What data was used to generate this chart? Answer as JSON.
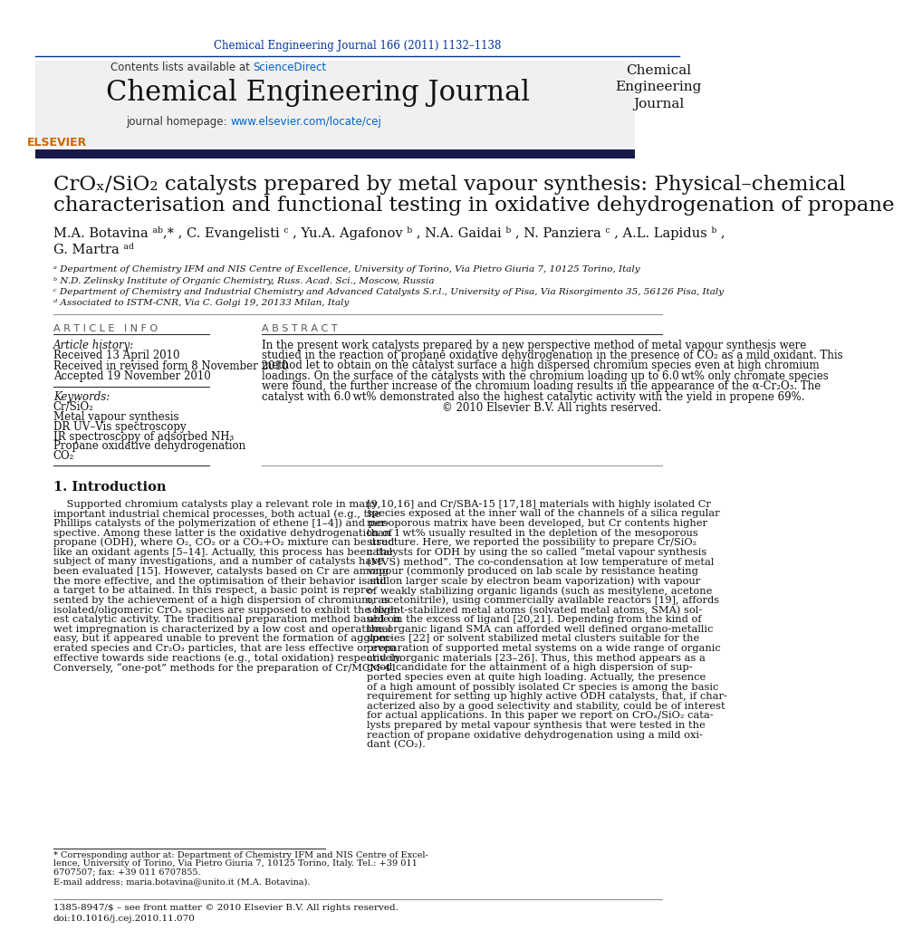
{
  "page_color": "#ffffff",
  "top_journal_ref": "Chemical Engineering Journal 166 (2011) 1132–1138",
  "journal_name": "Chemical Engineering Journal",
  "journal_name_right": "Chemical\nEngineering\nJournal",
  "contents_text": "Contents lists available at ",
  "sciencedirect_text": "ScienceDirect",
  "homepage_text": "journal homepage: ",
  "homepage_url": "www.elsevier.com/locate/cej",
  "title_line1": "CrOₓ/SiO₂ catalysts prepared by metal vapour synthesis: Physical–chemical",
  "title_line2": "characterisation and functional testing in oxidative dehydrogenation of propane",
  "authors": "M.A. Botavina ᵃᵇ,* , C. Evangelisti ᶜ , Yu.A. Agafonov ᵇ , N.A. Gaidai ᵇ , N. Panziera ᶜ , A.L. Lapidus ᵇ ,",
  "authors2": "G. Martra ᵃᵈ",
  "affil_a": "ᵃ Department of Chemistry IFM and NIS Centre of Excellence, University of Torino, Via Pietro Giuria 7, 10125 Torino, Italy",
  "affil_b": "ᵇ N.D. Zelinsky Institute of Organic Chemistry, Russ. Acad. Sci., Moscow, Russia",
  "affil_c": "ᶜ Department of Chemistry and Industrial Chemistry and Advanced Catalysts S.r.l., University of Pisa, Via Risorgimento 35, 56126 Pisa, Italy",
  "affil_d": "ᵈ Associated to ISTM-CNR, Via C. Golgi 19, 20133 Milan, Italy",
  "article_info_header": "A R T I C L E   I N F O",
  "abstract_header": "A B S T R A C T",
  "article_history_header": "Article history:",
  "received1": "Received 13 April 2010",
  "received2": "Received in revised form 8 November 2010",
  "accepted": "Accepted 19 November 2010",
  "keywords_header": "Keywords:",
  "kw1": "Cr/SiO₂",
  "kw2": "Metal vapour synthesis",
  "kw3": "DR UV–Vis spectroscopy",
  "kw4": "IR spectroscopy of adsorbed NH₃",
  "kw5": "Propane oxidative dehydrogenation",
  "kw6": "CO₂",
  "abstract_text": "In the present work catalysts prepared by a new perspective method of metal vapour synthesis were\nstudied in the reaction of propane oxidative dehydrogenation in the presence of CO₂ as a mild oxidant. This\nmethod let to obtain on the catalyst surface a high dispersed chromium species even at high chromium\nloadings. On the surface of the catalysts with the chromium loading up to 6.0 wt% only chromate species\nwere found, the further increase of the chromium loading results in the appearance of the α-Cr₂O₃. The\ncatalyst with 6.0 wt% demonstrated also the highest catalytic activity with the yield in propene 69%.",
  "copyright": "© 2010 Elsevier B.V. All rights reserved.",
  "intro_header": "1. Introduction",
  "intro_col1_lines": [
    "    Supported chromium catalysts play a relevant role in many",
    "important industrial chemical processes, both actual (e.g., the",
    "Phillips catalysts of the polymerization of ethene [1–4]) and per-",
    "spective. Among these latter is the oxidative dehydrogenation of",
    "propane (ODH), where O₂, CO₂ or a CO₂+O₂ mixture can be used",
    "like an oxidant agents [5–14]. Actually, this process has been the",
    "subject of many investigations, and a number of catalysts have",
    "been evaluated [15]. However, catalysts based on Cr are among",
    "the more effective, and the optimisation of their behavior is still",
    "a target to be attained. In this respect, a basic point is repre-",
    "sented by the achievement of a high dispersion of chromium, as",
    "isolated/oligomeric CrOₓ species are supposed to exhibit the high-",
    "est catalytic activity. The traditional preparation method based on",
    "wet impregnation is characterized by a low cost and operational",
    "easy, but it appeared unable to prevent the formation of agglom-",
    "erated species and Cr₂O₃ particles, that are less effective or even",
    "effective towards side reactions (e.g., total oxidation) respectively.",
    "Conversely, “one-pot” methods for the preparation of Cr/MCM-41"
  ],
  "intro_col2_lines": [
    "[9,10,16] and Cr/SBA-15 [17,18] materials with highly isolated Cr",
    "species exposed at the inner wall of the channels of a silica regular",
    "mesoporous matrix have been developed, but Cr contents higher",
    "than 1 wt% usually resulted in the depletion of the mesoporous",
    "structure. Here, we reported the possibility to prepare Cr/SiO₂",
    "catalysts for ODH by using the so called “metal vapour synthesis",
    "(MVS) method”. The co-condensation at low temperature of metal",
    "vapour (commonly produced on lab scale by resistance heating",
    "and on larger scale by electron beam vaporization) with vapour",
    "of weakly stabilizing organic ligands (such as mesitylene, acetone",
    "or acetonitrile), using commercially available reactors [19], affords",
    "solvent-stabilized metal atoms (solvated metal atoms, SMA) sol-",
    "uble in the excess of ligand [20,21]. Depending from the kind of",
    "the organic ligand SMA can afforded well defined organo-metallic",
    "species [22] or solvent stabilized metal clusters suitable for the",
    "preparation of supported metal systems on a wide range of organic",
    "and inorganic materials [23–26]. Thus, this method appears as a",
    "good candidate for the attainment of a high dispersion of sup-",
    "ported species even at quite high loading. Actually, the presence",
    "of a high amount of possibly isolated Cr species is among the basic",
    "requirement for setting up highly active ODH catalysts, that, if char-",
    "acterized also by a good selectivity and stability, could be of interest",
    "for actual applications. In this paper we report on CrOₓ/SiO₂ cata-",
    "lysts prepared by metal vapour synthesis that were tested in the",
    "reaction of propane oxidative dehydrogenation using a mild oxi-",
    "dant (CO₂)."
  ],
  "footnote1_lines": [
    "* Corresponding author at: Department of Chemistry IFM and NIS Centre of Excel-",
    "lence, University of Torino, Via Pietro Giuria 7, 10125 Torino, Italy. Tel.: +39 011",
    "6707507; fax: +39 011 6707855."
  ],
  "footnote2": "E-mail address: maria.botavina@unito.it (M.A. Botavina).",
  "footer1": "1385-8947/$ – see front matter © 2010 Elsevier B.V. All rights reserved.",
  "footer2": "doi:10.1016/j.cej.2010.11.070",
  "blue_color": "#003399",
  "link_color": "#0066cc",
  "orange_color": "#cc6600",
  "header_bg": "#f0f0f0",
  "dark_bar_color": "#1a1a4a",
  "text_color": "#000000"
}
